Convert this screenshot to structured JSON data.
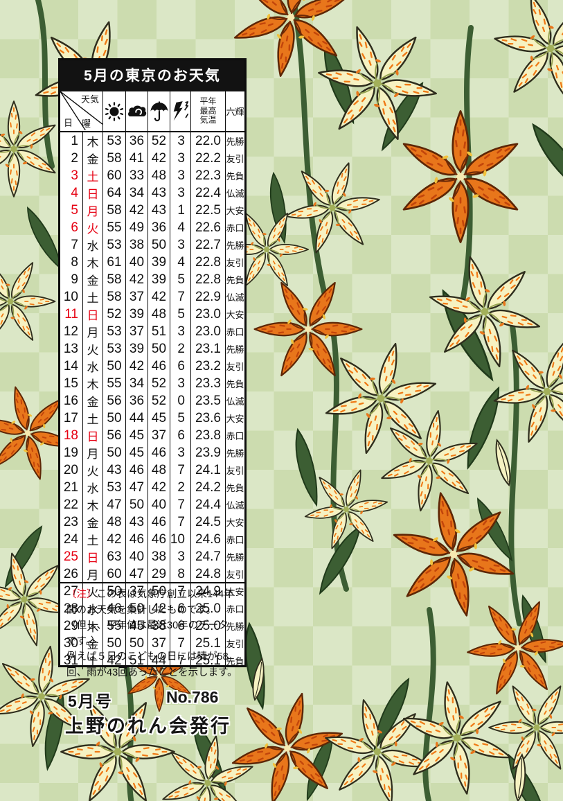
{
  "colors": {
    "red": "#e60012",
    "orange": "#e8761b",
    "orange_deep": "#c2450b",
    "cream": "#f6f2c2",
    "leaf": "#3c5e33",
    "leaf_dark": "#203a1a",
    "bg_green_1": "#ccdcaf",
    "bg_green_2": "#dbe7c6",
    "speckle": "#ef7a16",
    "ink": "#111111"
  },
  "panel": {
    "title": "5月の東京のお天気"
  },
  "table": {
    "corner": {
      "top_label": "天気",
      "mid_label": "曜",
      "bottom_label": "日"
    },
    "icons": {
      "sunny": "sun-icon",
      "cloudy": "cloud-icon",
      "rain": "umbrella-icon",
      "thunder": "thunder-icon"
    },
    "temp_header": [
      "平年",
      "最高",
      "気温"
    ],
    "rokuyo_header": "六輝",
    "rows": [
      {
        "day": "1",
        "dow": "木",
        "sun": "53",
        "cloud": "36",
        "rain": "52",
        "thunder": "3",
        "temp": "22.0",
        "rokuyo": "先勝",
        "red": false
      },
      {
        "day": "2",
        "dow": "金",
        "sun": "58",
        "cloud": "41",
        "rain": "42",
        "thunder": "3",
        "temp": "22.2",
        "rokuyo": "友引",
        "red": false
      },
      {
        "day": "3",
        "dow": "土",
        "sun": "60",
        "cloud": "33",
        "rain": "48",
        "thunder": "3",
        "temp": "22.3",
        "rokuyo": "先負",
        "red": true
      },
      {
        "day": "4",
        "dow": "日",
        "sun": "64",
        "cloud": "34",
        "rain": "43",
        "thunder": "3",
        "temp": "22.4",
        "rokuyo": "仏滅",
        "red": true
      },
      {
        "day": "5",
        "dow": "月",
        "sun": "58",
        "cloud": "42",
        "rain": "43",
        "thunder": "1",
        "temp": "22.5",
        "rokuyo": "大安",
        "red": true
      },
      {
        "day": "6",
        "dow": "火",
        "sun": "55",
        "cloud": "49",
        "rain": "36",
        "thunder": "4",
        "temp": "22.6",
        "rokuyo": "赤口",
        "red": true
      },
      {
        "day": "7",
        "dow": "水",
        "sun": "53",
        "cloud": "38",
        "rain": "50",
        "thunder": "3",
        "temp": "22.7",
        "rokuyo": "先勝",
        "red": false
      },
      {
        "day": "8",
        "dow": "木",
        "sun": "61",
        "cloud": "40",
        "rain": "39",
        "thunder": "4",
        "temp": "22.8",
        "rokuyo": "友引",
        "red": false
      },
      {
        "day": "9",
        "dow": "金",
        "sun": "58",
        "cloud": "42",
        "rain": "39",
        "thunder": "5",
        "temp": "22.8",
        "rokuyo": "先負",
        "red": false
      },
      {
        "day": "10",
        "dow": "土",
        "sun": "58",
        "cloud": "37",
        "rain": "42",
        "thunder": "7",
        "temp": "22.9",
        "rokuyo": "仏滅",
        "red": false
      },
      {
        "day": "11",
        "dow": "日",
        "sun": "52",
        "cloud": "39",
        "rain": "48",
        "thunder": "5",
        "temp": "23.0",
        "rokuyo": "大安",
        "red": true
      },
      {
        "day": "12",
        "dow": "月",
        "sun": "53",
        "cloud": "37",
        "rain": "51",
        "thunder": "3",
        "temp": "23.0",
        "rokuyo": "赤口",
        "red": false
      },
      {
        "day": "13",
        "dow": "火",
        "sun": "53",
        "cloud": "39",
        "rain": "50",
        "thunder": "2",
        "temp": "23.1",
        "rokuyo": "先勝",
        "red": false
      },
      {
        "day": "14",
        "dow": "水",
        "sun": "50",
        "cloud": "42",
        "rain": "46",
        "thunder": "6",
        "temp": "23.2",
        "rokuyo": "友引",
        "red": false
      },
      {
        "day": "15",
        "dow": "木",
        "sun": "55",
        "cloud": "34",
        "rain": "52",
        "thunder": "3",
        "temp": "23.3",
        "rokuyo": "先負",
        "red": false
      },
      {
        "day": "16",
        "dow": "金",
        "sun": "56",
        "cloud": "36",
        "rain": "52",
        "thunder": "0",
        "temp": "23.5",
        "rokuyo": "仏滅",
        "red": false
      },
      {
        "day": "17",
        "dow": "土",
        "sun": "50",
        "cloud": "44",
        "rain": "45",
        "thunder": "5",
        "temp": "23.6",
        "rokuyo": "大安",
        "red": false
      },
      {
        "day": "18",
        "dow": "日",
        "sun": "56",
        "cloud": "45",
        "rain": "37",
        "thunder": "6",
        "temp": "23.8",
        "rokuyo": "赤口",
        "red": true
      },
      {
        "day": "19",
        "dow": "月",
        "sun": "50",
        "cloud": "45",
        "rain": "46",
        "thunder": "3",
        "temp": "23.9",
        "rokuyo": "先勝",
        "red": false
      },
      {
        "day": "20",
        "dow": "火",
        "sun": "43",
        "cloud": "46",
        "rain": "48",
        "thunder": "7",
        "temp": "24.1",
        "rokuyo": "友引",
        "red": false
      },
      {
        "day": "21",
        "dow": "水",
        "sun": "53",
        "cloud": "47",
        "rain": "42",
        "thunder": "2",
        "temp": "24.2",
        "rokuyo": "先負",
        "red": false
      },
      {
        "day": "22",
        "dow": "木",
        "sun": "47",
        "cloud": "50",
        "rain": "40",
        "thunder": "7",
        "temp": "24.4",
        "rokuyo": "仏滅",
        "red": false
      },
      {
        "day": "23",
        "dow": "金",
        "sun": "48",
        "cloud": "43",
        "rain": "46",
        "thunder": "7",
        "temp": "24.5",
        "rokuyo": "大安",
        "red": false
      },
      {
        "day": "24",
        "dow": "土",
        "sun": "42",
        "cloud": "46",
        "rain": "46",
        "thunder": "10",
        "temp": "24.6",
        "rokuyo": "赤口",
        "red": false
      },
      {
        "day": "25",
        "dow": "日",
        "sun": "63",
        "cloud": "40",
        "rain": "38",
        "thunder": "3",
        "temp": "24.7",
        "rokuyo": "先勝",
        "red": true
      },
      {
        "day": "26",
        "dow": "月",
        "sun": "60",
        "cloud": "47",
        "rain": "29",
        "thunder": "8",
        "temp": "24.8",
        "rokuyo": "友引",
        "red": false
      },
      {
        "day": "27",
        "dow": "火",
        "sun": "50",
        "cloud": "37",
        "rain": "50",
        "thunder": "7",
        "temp": "24.9",
        "rokuyo": "大安",
        "red": false
      },
      {
        "day": "28",
        "dow": "水",
        "sun": "46",
        "cloud": "50",
        "rain": "42",
        "thunder": "6",
        "temp": "25.0",
        "rokuyo": "赤口",
        "red": false
      },
      {
        "day": "29",
        "dow": "木",
        "sun": "55",
        "cloud": "45",
        "rain": "38",
        "thunder": "6",
        "temp": "25.0",
        "rokuyo": "先勝",
        "red": false
      },
      {
        "day": "30",
        "dow": "金",
        "sun": "50",
        "cloud": "50",
        "rain": "37",
        "thunder": "7",
        "temp": "25.1",
        "rokuyo": "友引",
        "red": false
      },
      {
        "day": "31",
        "dow": "土",
        "sun": "42",
        "cloud": "51",
        "rain": "44",
        "thunder": "7",
        "temp": "25.1",
        "rokuyo": "先負",
        "red": false
      }
    ]
  },
  "note": {
    "tag": "〔注〕",
    "text1": "この表は気象庁創立以来144年間のお天気を集計したものです。",
    "text2": "（但し、平年値は最近30年のデータです。）",
    "text3": "例えば５日のこどもの日には晴が58回、雨が43回あったことを示します。"
  },
  "footer": {
    "issue": "5月号",
    "number": "No.786",
    "publisher": "上野のれん会発行"
  }
}
